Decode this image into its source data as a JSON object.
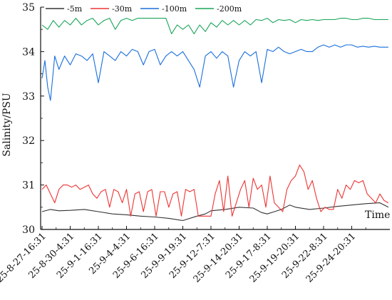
{
  "chart_data": {
    "type": "line",
    "xlabel": "Time",
    "ylabel": "Salinity/PSU",
    "ylim": [
      30,
      35
    ],
    "yticks": [
      30,
      31,
      32,
      33,
      34,
      35
    ],
    "legend_position": "top-left",
    "grid": false,
    "x_categories": [
      "25-8-27-16:31",
      "25-8-30-4:31",
      "25-9-1-16:31",
      "25-9-4-4:31",
      "25-9-6-16:31",
      "25-9-9-19:31",
      "25-9-12-7:31",
      "25-9-14-20:31",
      "25-9-17-8:31",
      "25-9-19-20:31",
      "25-9-22-8:31",
      "25-9-24-20:31"
    ],
    "x_range": [
      0,
      12.6
    ],
    "series": [
      {
        "name": "-5m",
        "color": "#333333",
        "x": [
          0,
          0.3,
          0.6,
          1.0,
          1.5,
          2.0,
          2.5,
          3.0,
          3.5,
          4.0,
          4.5,
          5.0,
          5.5,
          5.8,
          6.0,
          6.5,
          7.0,
          7.5,
          7.8,
          8.0,
          8.5,
          8.8,
          9.0,
          9.5,
          10.0,
          10.5,
          11.0,
          11.5,
          12.0,
          12.3
        ],
        "values": [
          30.4,
          30.45,
          30.42,
          30.43,
          30.45,
          30.4,
          30.35,
          30.33,
          30.3,
          30.28,
          30.25,
          30.2,
          30.3,
          30.35,
          30.42,
          30.45,
          30.5,
          30.48,
          30.38,
          30.35,
          30.45,
          30.55,
          30.5,
          30.45,
          30.48,
          30.52,
          30.55,
          30.58,
          30.6,
          30.5
        ]
      },
      {
        "name": "-30m",
        "color": "#ee3333",
        "x": [
          0,
          0.15,
          0.3,
          0.45,
          0.6,
          0.75,
          0.9,
          1.05,
          1.2,
          1.35,
          1.5,
          1.65,
          1.8,
          1.95,
          2.1,
          2.25,
          2.4,
          2.55,
          2.7,
          2.85,
          3.0,
          3.15,
          3.3,
          3.45,
          3.6,
          3.75,
          3.9,
          4.05,
          4.2,
          4.35,
          4.5,
          4.65,
          4.8,
          4.95,
          5.1,
          5.25,
          5.4,
          5.55,
          5.7,
          5.85,
          6.0,
          6.15,
          6.3,
          6.45,
          6.6,
          6.75,
          6.9,
          7.05,
          7.2,
          7.35,
          7.5,
          7.65,
          7.8,
          7.95,
          8.1,
          8.25,
          8.4,
          8.55,
          8.7,
          8.85,
          9.0,
          9.15,
          9.3,
          9.45,
          9.6,
          9.75,
          9.9,
          10.05,
          10.2,
          10.35,
          10.5,
          10.65,
          10.8,
          10.95,
          11.1,
          11.25,
          11.4,
          11.55,
          11.7,
          11.85,
          12.0,
          12.15,
          12.3
        ],
        "values": [
          30.9,
          31.0,
          30.8,
          30.6,
          30.9,
          31.0,
          31.0,
          30.95,
          31.0,
          30.9,
          30.95,
          31.0,
          30.8,
          30.7,
          30.85,
          30.9,
          30.5,
          30.9,
          30.85,
          30.6,
          30.9,
          30.3,
          30.8,
          30.85,
          30.4,
          30.85,
          30.9,
          30.3,
          30.85,
          30.85,
          30.5,
          30.8,
          30.85,
          30.3,
          30.9,
          30.85,
          30.9,
          30.3,
          30.3,
          30.3,
          30.3,
          30.8,
          31.1,
          30.4,
          31.2,
          30.3,
          30.6,
          30.9,
          31.1,
          30.5,
          31.15,
          30.9,
          31.0,
          30.5,
          31.2,
          30.6,
          30.5,
          30.4,
          30.9,
          31.1,
          31.2,
          31.45,
          31.3,
          30.9,
          31.1,
          30.7,
          30.4,
          30.5,
          30.45,
          30.45,
          30.9,
          30.7,
          31.0,
          30.9,
          31.1,
          31.05,
          31.1,
          30.8,
          30.7,
          30.6,
          30.8,
          30.65,
          30.6
        ]
      },
      {
        "name": "-100m",
        "color": "#1a6fdc",
        "x": [
          0,
          0.1,
          0.2,
          0.3,
          0.45,
          0.6,
          0.8,
          1.0,
          1.2,
          1.4,
          1.6,
          1.8,
          2.0,
          2.2,
          2.4,
          2.6,
          2.8,
          3.0,
          3.2,
          3.4,
          3.6,
          3.8,
          4.0,
          4.2,
          4.4,
          4.6,
          4.8,
          5.0,
          5.2,
          5.4,
          5.6,
          5.8,
          6.0,
          6.2,
          6.4,
          6.6,
          6.8,
          7.0,
          7.2,
          7.4,
          7.6,
          7.8,
          8.0,
          8.2,
          8.4,
          8.6,
          8.8,
          9.0,
          9.2,
          9.4,
          9.6,
          9.8,
          10.0,
          10.2,
          10.4,
          10.6,
          10.8,
          11.0,
          11.2,
          11.4,
          11.6,
          11.8,
          12.0,
          12.3
        ],
        "values": [
          33.4,
          33.8,
          33.2,
          32.9,
          33.9,
          33.6,
          33.9,
          33.7,
          33.95,
          33.9,
          33.8,
          33.95,
          33.3,
          34.0,
          33.9,
          33.8,
          34.0,
          33.9,
          34.05,
          34.0,
          33.7,
          34.0,
          34.05,
          33.7,
          33.9,
          34.0,
          33.9,
          34.0,
          33.8,
          33.6,
          33.2,
          33.9,
          34.0,
          33.85,
          34.0,
          33.9,
          33.2,
          33.8,
          34.0,
          33.9,
          34.0,
          33.3,
          34.05,
          34.0,
          34.1,
          34.0,
          33.95,
          34.0,
          34.05,
          34.0,
          34.0,
          34.1,
          34.15,
          34.1,
          34.15,
          34.1,
          34.15,
          34.15,
          34.1,
          34.12,
          34.1,
          34.12,
          34.1,
          34.1
        ]
      },
      {
        "name": "-200m",
        "color": "#18a558",
        "x": [
          0,
          0.2,
          0.4,
          0.6,
          0.8,
          1.0,
          1.2,
          1.4,
          1.6,
          1.8,
          2.0,
          2.2,
          2.4,
          2.6,
          2.8,
          3.0,
          3.2,
          3.4,
          3.6,
          3.8,
          4.0,
          4.2,
          4.4,
          4.6,
          4.8,
          5.0,
          5.2,
          5.4,
          5.6,
          5.8,
          6.0,
          6.2,
          6.4,
          6.6,
          6.8,
          7.0,
          7.2,
          7.4,
          7.6,
          7.8,
          8.0,
          8.2,
          8.4,
          8.6,
          8.8,
          9.0,
          9.2,
          9.4,
          9.6,
          9.8,
          10.0,
          10.2,
          10.4,
          10.6,
          10.8,
          11.0,
          11.2,
          11.4,
          11.6,
          11.8,
          12.0,
          12.3
        ],
        "values": [
          34.6,
          34.5,
          34.7,
          34.55,
          34.7,
          34.6,
          34.75,
          34.6,
          34.7,
          34.75,
          34.6,
          34.7,
          34.75,
          34.5,
          34.7,
          34.75,
          34.7,
          34.75,
          34.75,
          34.75,
          34.75,
          34.75,
          34.75,
          34.4,
          34.6,
          34.5,
          34.6,
          34.4,
          34.6,
          34.45,
          34.65,
          34.55,
          34.7,
          34.6,
          34.7,
          34.6,
          34.7,
          34.6,
          34.72,
          34.7,
          34.75,
          34.65,
          34.72,
          34.7,
          34.72,
          34.65,
          34.72,
          34.7,
          34.72,
          34.7,
          34.72,
          34.72,
          34.72,
          34.75,
          34.75,
          34.72,
          34.72,
          34.75,
          34.75,
          34.72,
          34.72,
          34.72
        ]
      }
    ]
  }
}
